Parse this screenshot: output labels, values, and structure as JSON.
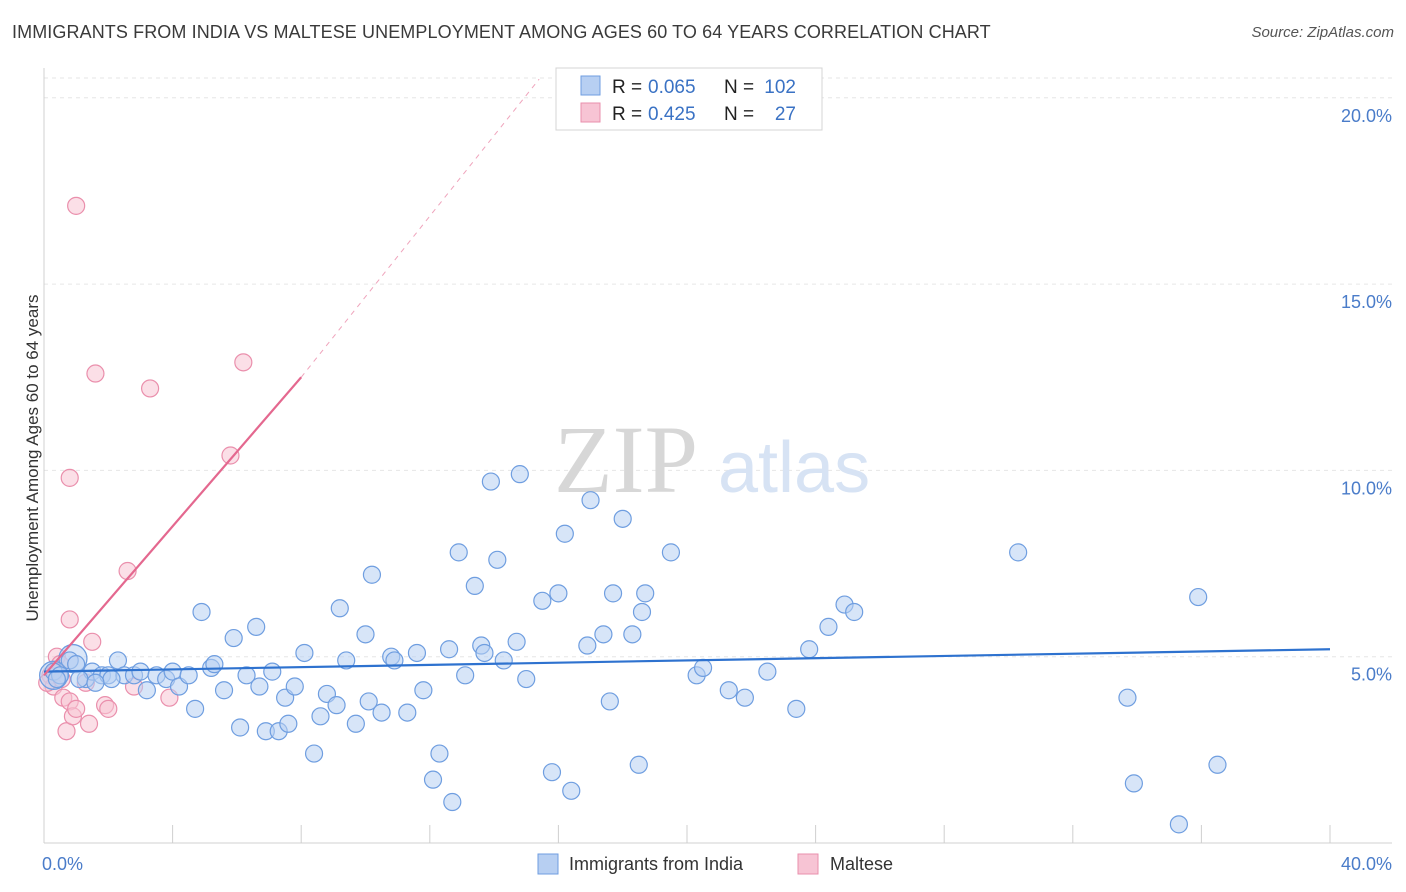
{
  "title": "IMMIGRANTS FROM INDIA VS MALTESE UNEMPLOYMENT AMONG AGES 60 TO 64 YEARS CORRELATION CHART",
  "source": "Source: ZipAtlas.com",
  "chart_data": {
    "type": "scatter",
    "ylabel": "Unemployment Among Ages 60 to 64 years",
    "xlabel": "",
    "xlim": [
      0,
      40
    ],
    "ylim": [
      0,
      20.8
    ],
    "x_tick_labels": [
      "0.0%",
      "40.0%"
    ],
    "y_ticks": [
      5,
      10,
      15,
      20
    ],
    "y_tick_labels": [
      "5.0%",
      "10.0%",
      "15.0%",
      "20.0%"
    ],
    "grid": true,
    "watermark": "ZIPatlas",
    "legend": {
      "r_label": "R =",
      "n_label": "N =",
      "entries": [
        {
          "name": "Immigrants from India",
          "r": "0.065",
          "n": "102"
        },
        {
          "name": "Maltese",
          "r": "0.425",
          "n": "27"
        }
      ]
    },
    "colors": {
      "india_fill": "#b7cff2",
      "india_stroke": "#6f9ee0",
      "india_line": "#2e72cf",
      "maltese_fill": "#f7c4d4",
      "maltese_stroke": "#ea8fac",
      "maltese_line": "#e4688f"
    },
    "series": [
      {
        "name": "Immigrants from India",
        "trend": {
          "x0": 0,
          "y0": 4.6,
          "x1": 40,
          "y1": 5.2
        },
        "points": [
          [
            0.3,
            4.6
          ],
          [
            0.5,
            4.5
          ],
          [
            0.8,
            4.9
          ],
          [
            1.0,
            4.8
          ],
          [
            1.3,
            4.4
          ],
          [
            1.5,
            4.6
          ],
          [
            1.8,
            4.5
          ],
          [
            2.0,
            4.5
          ],
          [
            2.3,
            4.9
          ],
          [
            2.5,
            4.5
          ],
          [
            2.8,
            4.5
          ],
          [
            3.0,
            4.6
          ],
          [
            3.2,
            4.1
          ],
          [
            3.5,
            4.5
          ],
          [
            3.8,
            4.4
          ],
          [
            4.0,
            4.6
          ],
          [
            4.2,
            4.2
          ],
          [
            4.5,
            4.5
          ],
          [
            4.7,
            3.6
          ],
          [
            4.9,
            6.2
          ],
          [
            5.2,
            4.7
          ],
          [
            5.3,
            4.8
          ],
          [
            5.6,
            4.1
          ],
          [
            5.9,
            5.5
          ],
          [
            6.1,
            3.1
          ],
          [
            6.3,
            4.5
          ],
          [
            6.6,
            5.8
          ],
          [
            6.7,
            4.2
          ],
          [
            6.9,
            3.0
          ],
          [
            7.1,
            4.6
          ],
          [
            7.3,
            3.0
          ],
          [
            7.5,
            3.9
          ],
          [
            7.6,
            3.2
          ],
          [
            7.8,
            4.2
          ],
          [
            8.1,
            5.1
          ],
          [
            8.4,
            2.4
          ],
          [
            8.6,
            3.4
          ],
          [
            8.8,
            4.0
          ],
          [
            9.1,
            3.7
          ],
          [
            9.2,
            6.3
          ],
          [
            9.4,
            4.9
          ],
          [
            9.7,
            3.2
          ],
          [
            10.0,
            5.6
          ],
          [
            10.1,
            3.8
          ],
          [
            10.2,
            7.2
          ],
          [
            10.5,
            3.5
          ],
          [
            10.8,
            5.0
          ],
          [
            10.9,
            4.9
          ],
          [
            11.3,
            3.5
          ],
          [
            11.6,
            5.1
          ],
          [
            11.8,
            4.1
          ],
          [
            12.1,
            1.7
          ],
          [
            12.3,
            2.4
          ],
          [
            12.6,
            5.2
          ],
          [
            12.7,
            1.1
          ],
          [
            12.9,
            7.8
          ],
          [
            13.1,
            4.5
          ],
          [
            13.4,
            6.9
          ],
          [
            13.6,
            5.3
          ],
          [
            13.7,
            5.1
          ],
          [
            13.9,
            9.7
          ],
          [
            14.1,
            7.6
          ],
          [
            14.3,
            4.9
          ],
          [
            14.7,
            5.4
          ],
          [
            14.8,
            9.9
          ],
          [
            15.0,
            4.4
          ],
          [
            15.5,
            6.5
          ],
          [
            15.8,
            1.9
          ],
          [
            16.0,
            6.7
          ],
          [
            16.2,
            8.3
          ],
          [
            16.4,
            1.4
          ],
          [
            16.9,
            5.3
          ],
          [
            17.0,
            9.2
          ],
          [
            17.4,
            5.6
          ],
          [
            17.6,
            3.8
          ],
          [
            17.7,
            6.7
          ],
          [
            18.0,
            8.7
          ],
          [
            18.3,
            5.6
          ],
          [
            18.5,
            2.1
          ],
          [
            18.6,
            6.2
          ],
          [
            18.7,
            6.7
          ],
          [
            19.5,
            7.8
          ],
          [
            20.3,
            4.5
          ],
          [
            20.5,
            4.7
          ],
          [
            21.3,
            4.1
          ],
          [
            21.8,
            3.9
          ],
          [
            22.5,
            4.6
          ],
          [
            23.4,
            3.6
          ],
          [
            23.8,
            5.2
          ],
          [
            24.4,
            5.8
          ],
          [
            24.9,
            6.4
          ],
          [
            25.2,
            6.2
          ],
          [
            30.3,
            7.8
          ],
          [
            33.7,
            3.9
          ],
          [
            33.9,
            1.6
          ],
          [
            35.3,
            0.5
          ],
          [
            35.9,
            6.6
          ],
          [
            36.5,
            2.1
          ],
          [
            0.4,
            4.4
          ],
          [
            1.1,
            4.4
          ],
          [
            2.1,
            4.4
          ],
          [
            1.6,
            4.3
          ]
        ],
        "big_points": [
          [
            0.9,
            4.95
          ],
          [
            0.3,
            4.5
          ]
        ]
      },
      {
        "name": "Maltese",
        "trend": {
          "x0": 0,
          "y0": 4.5,
          "x1": 8.0,
          "y1": 12.5,
          "dash_x1": 15.4,
          "dash_y1": 20.5
        },
        "points": [
          [
            0.2,
            4.5
          ],
          [
            0.3,
            4.2
          ],
          [
            0.4,
            5.0
          ],
          [
            0.5,
            4.8
          ],
          [
            0.6,
            3.9
          ],
          [
            0.8,
            3.8
          ],
          [
            0.7,
            3.0
          ],
          [
            0.8,
            9.8
          ],
          [
            0.8,
            6.0
          ],
          [
            0.9,
            3.4
          ],
          [
            1.0,
            3.6
          ],
          [
            1.0,
            17.1
          ],
          [
            1.3,
            4.3
          ],
          [
            1.4,
            3.2
          ],
          [
            1.5,
            5.4
          ],
          [
            1.6,
            12.6
          ],
          [
            1.9,
            3.7
          ],
          [
            2.0,
            3.6
          ],
          [
            2.6,
            7.3
          ],
          [
            2.8,
            4.2
          ],
          [
            3.3,
            12.2
          ],
          [
            3.9,
            3.9
          ],
          [
            5.8,
            10.4
          ],
          [
            6.2,
            12.9
          ],
          [
            0.1,
            4.3
          ],
          [
            0.35,
            4.6
          ],
          [
            0.55,
            4.4
          ]
        ]
      }
    ]
  }
}
